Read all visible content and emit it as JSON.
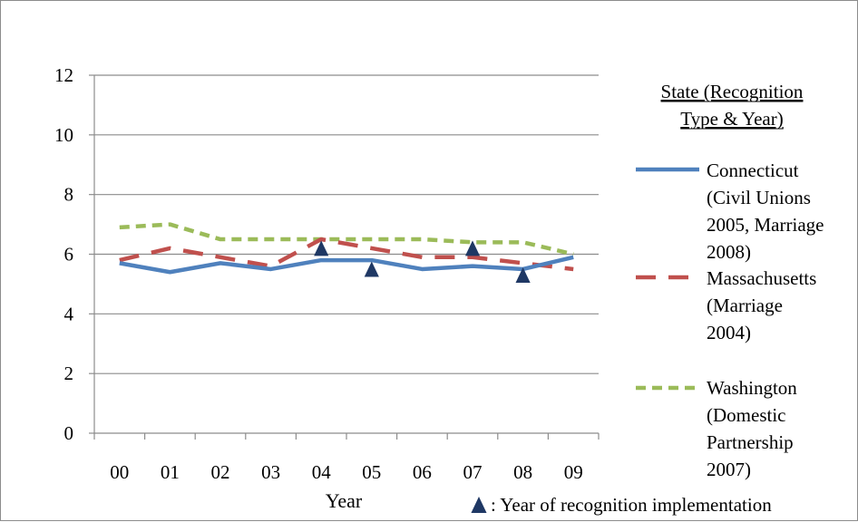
{
  "chart_data": {
    "type": "line",
    "xlabel": "Year",
    "ylabel": "",
    "categories": [
      "00",
      "01",
      "02",
      "03",
      "04",
      "05",
      "06",
      "07",
      "08",
      "09"
    ],
    "ylim": [
      0,
      12
    ],
    "yticks": [
      "0",
      "2",
      "4",
      "6",
      "8",
      "10",
      "12"
    ],
    "grid": true,
    "legend_position": "right",
    "legend_title": [
      "State (Recognition",
      "Type & Year)"
    ],
    "series": [
      {
        "name": "Connecticut (Civil Unions 2005, Marriage 2008)",
        "legend_lines": [
          "Connecticut",
          "(Civil Unions",
          "2005, Marriage",
          "2008)"
        ],
        "color": "#4f81bd",
        "style": "solid",
        "values": [
          5.7,
          5.4,
          5.7,
          5.5,
          5.8,
          5.8,
          5.5,
          5.6,
          5.5,
          5.9
        ]
      },
      {
        "name": "Massachusetts (Marriage 2004)",
        "legend_lines": [
          "Massachusetts",
          "(Marriage",
          "2004)"
        ],
        "color": "#c0504d",
        "style": "dashed",
        "values": [
          5.8,
          6.2,
          5.9,
          5.6,
          6.5,
          6.2,
          5.9,
          5.9,
          5.7,
          5.5
        ]
      },
      {
        "name": "Washington (Domestic Partnership 2007)",
        "legend_lines": [
          "Washington",
          "(Domestic",
          "Partnership",
          "2007)"
        ],
        "color": "#9bbb59",
        "style": "dotted",
        "values": [
          6.9,
          7.0,
          6.5,
          6.5,
          6.5,
          6.5,
          6.5,
          6.4,
          6.4,
          6.0
        ]
      }
    ],
    "markers": [
      {
        "x": 4.5,
        "y": 6.2
      },
      {
        "x": 5.5,
        "y": 5.5
      },
      {
        "x": 7.5,
        "y": 6.2
      },
      {
        "x": 8.5,
        "y": 5.3
      }
    ],
    "marker_color": "#1f3864",
    "annotation": ": Year of recognition implementation"
  }
}
